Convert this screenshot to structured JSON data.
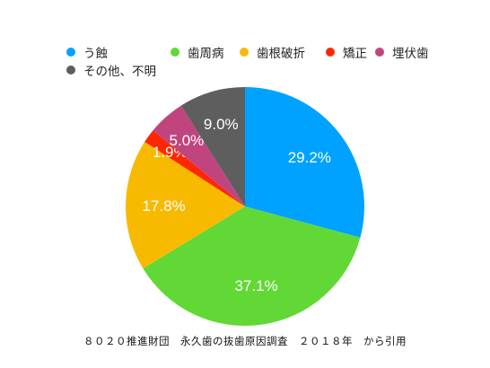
{
  "chart_data": {
    "type": "pie",
    "slices": [
      {
        "label": "う蝕",
        "value": 29.2,
        "value_label": "29.2%",
        "color": "#00A2FF"
      },
      {
        "label": "歯周病",
        "value": 37.1,
        "value_label": "37.1%",
        "color": "#61D836"
      },
      {
        "label": "歯根破折",
        "value": 17.8,
        "value_label": "17.8%",
        "color": "#F8BA00"
      },
      {
        "label": "矯正",
        "value": 1.9,
        "value_label": "1.9%",
        "color": "#FF2600"
      },
      {
        "label": "埋伏歯",
        "value": 5.0,
        "value_label": "5.0%",
        "color": "#C0457F"
      },
      {
        "label": "その他、不明",
        "value": 9.0,
        "value_label": "9.0%",
        "color": "#5E5E5E"
      }
    ],
    "legend_position": "top",
    "start_angle": "12 o'clock, clockwise"
  },
  "source_note": "８０２０推進財団　永久歯の抜歯原因調査　２０１８年　から引用"
}
